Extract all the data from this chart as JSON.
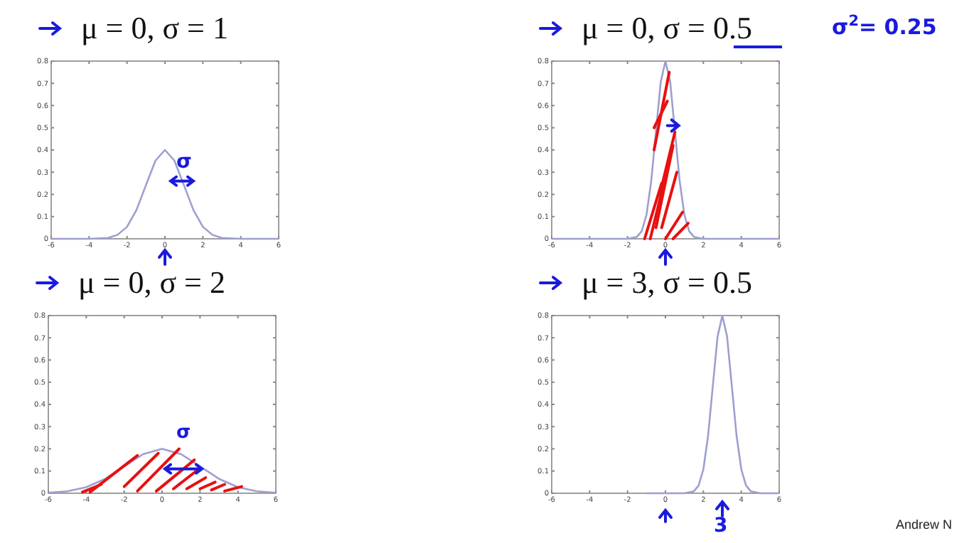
{
  "chart_data": [
    {
      "type": "line",
      "title": "μ = 0, σ = 1",
      "xlim": [
        -6,
        6
      ],
      "xticks": [
        -6,
        -4,
        -2,
        0,
        2,
        4,
        6
      ],
      "ylim": [
        0,
        0.8
      ],
      "yticks": [
        0,
        0.1,
        0.2,
        0.3,
        0.4,
        0.5,
        0.6,
        0.7,
        0.8
      ],
      "grid": false,
      "annotations": [
        "σ"
      ],
      "series": [
        {
          "color": "#9d9fd0",
          "x": [
            -6,
            -4,
            -3,
            -2.5,
            -2,
            -1.5,
            -1,
            -0.5,
            0,
            0.5,
            1,
            1.5,
            2,
            2.5,
            3,
            4,
            6
          ],
          "values": [
            0,
            0,
            0.004,
            0.018,
            0.054,
            0.13,
            0.242,
            0.352,
            0.4,
            0.352,
            0.242,
            0.13,
            0.054,
            0.018,
            0.004,
            0,
            0
          ]
        }
      ]
    },
    {
      "type": "line",
      "title": "μ = 0, σ = 0.5",
      "xlim": [
        -6,
        6
      ],
      "xticks": [
        -6,
        -4,
        -2,
        0,
        2,
        4,
        6
      ],
      "ylim": [
        0,
        0.8
      ],
      "yticks": [
        0,
        0.1,
        0.2,
        0.3,
        0.4,
        0.5,
        0.6,
        0.7,
        0.8
      ],
      "grid": false,
      "annotations": [
        "σ$^{2}$= 0.25"
      ],
      "series": [
        {
          "color": "#9d9fd0",
          "x": [
            -6,
            -2,
            -1.5,
            -1.25,
            -1,
            -0.75,
            -0.5,
            -0.25,
            0,
            0.25,
            0.5,
            0.75,
            1,
            1.25,
            1.5,
            2,
            6
          ],
          "values": [
            0,
            0,
            0.009,
            0.035,
            0.108,
            0.26,
            0.484,
            0.706,
            0.8,
            0.706,
            0.484,
            0.26,
            0.108,
            0.035,
            0.009,
            0,
            0
          ]
        }
      ]
    },
    {
      "type": "line",
      "title": "μ = 0, σ = 2",
      "xlim": [
        -6,
        6
      ],
      "xticks": [
        -6,
        -4,
        -2,
        0,
        2,
        4,
        6
      ],
      "ylim": [
        0,
        0.8
      ],
      "yticks": [
        0,
        0.1,
        0.2,
        0.3,
        0.4,
        0.5,
        0.6,
        0.7,
        0.8
      ],
      "grid": false,
      "annotations": [
        "σ"
      ],
      "series": [
        {
          "color": "#9d9fd0",
          "x": [
            -6,
            -5,
            -4,
            -3,
            -2,
            -1,
            0,
            1,
            2,
            3,
            4,
            5,
            6
          ],
          "values": [
            0.002,
            0.009,
            0.027,
            0.065,
            0.121,
            0.176,
            0.2,
            0.176,
            0.121,
            0.065,
            0.027,
            0.009,
            0.002
          ]
        }
      ]
    },
    {
      "type": "line",
      "title": "μ = 3, σ = 0.5",
      "xlim": [
        -6,
        6
      ],
      "xticks": [
        -6,
        -4,
        -2,
        0,
        2,
        4,
        6
      ],
      "ylim": [
        0,
        0.8
      ],
      "yticks": [
        0,
        0.1,
        0.2,
        0.3,
        0.4,
        0.5,
        0.6,
        0.7,
        0.8
      ],
      "grid": false,
      "annotations": [
        "3",
        "Andrew N"
      ],
      "series": [
        {
          "color": "#9d9fd0",
          "x": [
            -1,
            1,
            1.5,
            1.75,
            2,
            2.25,
            2.5,
            2.75,
            3,
            3.25,
            3.5,
            3.75,
            4,
            4.25,
            4.5,
            5,
            6
          ],
          "values": [
            0,
            0,
            0.009,
            0.035,
            0.108,
            0.26,
            0.484,
            0.706,
            0.8,
            0.706,
            0.484,
            0.26,
            0.108,
            0.035,
            0.009,
            0,
            0
          ]
        }
      ]
    }
  ]
}
